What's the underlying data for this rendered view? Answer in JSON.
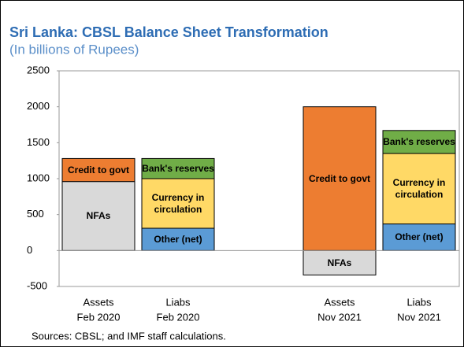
{
  "chart_data": {
    "type": "stacked_bar",
    "title": "Sri Lanka: CBSL Balance Sheet Transformation",
    "subtitle": "(In billions of Rupees)",
    "source": "Sources: CBSL; and IMF staff calculations.",
    "categories": [
      [
        "Assets",
        "Feb 2020"
      ],
      [
        "Liabs",
        "Feb 2020"
      ],
      [
        "Assets",
        "Nov 2021"
      ],
      [
        "Liabs",
        "Nov 2021"
      ]
    ],
    "series": [
      {
        "name": "NFAs",
        "color": "#d9d9d9",
        "values": [
          960,
          null,
          -340,
          null
        ]
      },
      {
        "name": "Credit to govt",
        "color": "#ed7d31",
        "values": [
          320,
          null,
          2000,
          null
        ]
      },
      {
        "name": "Other (net)",
        "color": "#5b9bd5",
        "values": [
          null,
          310,
          null,
          370
        ]
      },
      {
        "name": "Currency in circulation",
        "color": "#ffd966",
        "values": [
          null,
          690,
          null,
          980
        ]
      },
      {
        "name": "Bank's reserves",
        "color": "#70ad47",
        "values": [
          null,
          280,
          null,
          320
        ]
      }
    ],
    "ylim": [
      -500,
      2500
    ],
    "yticks": [
      -500,
      0,
      500,
      1000,
      1500,
      2000,
      2500
    ]
  }
}
